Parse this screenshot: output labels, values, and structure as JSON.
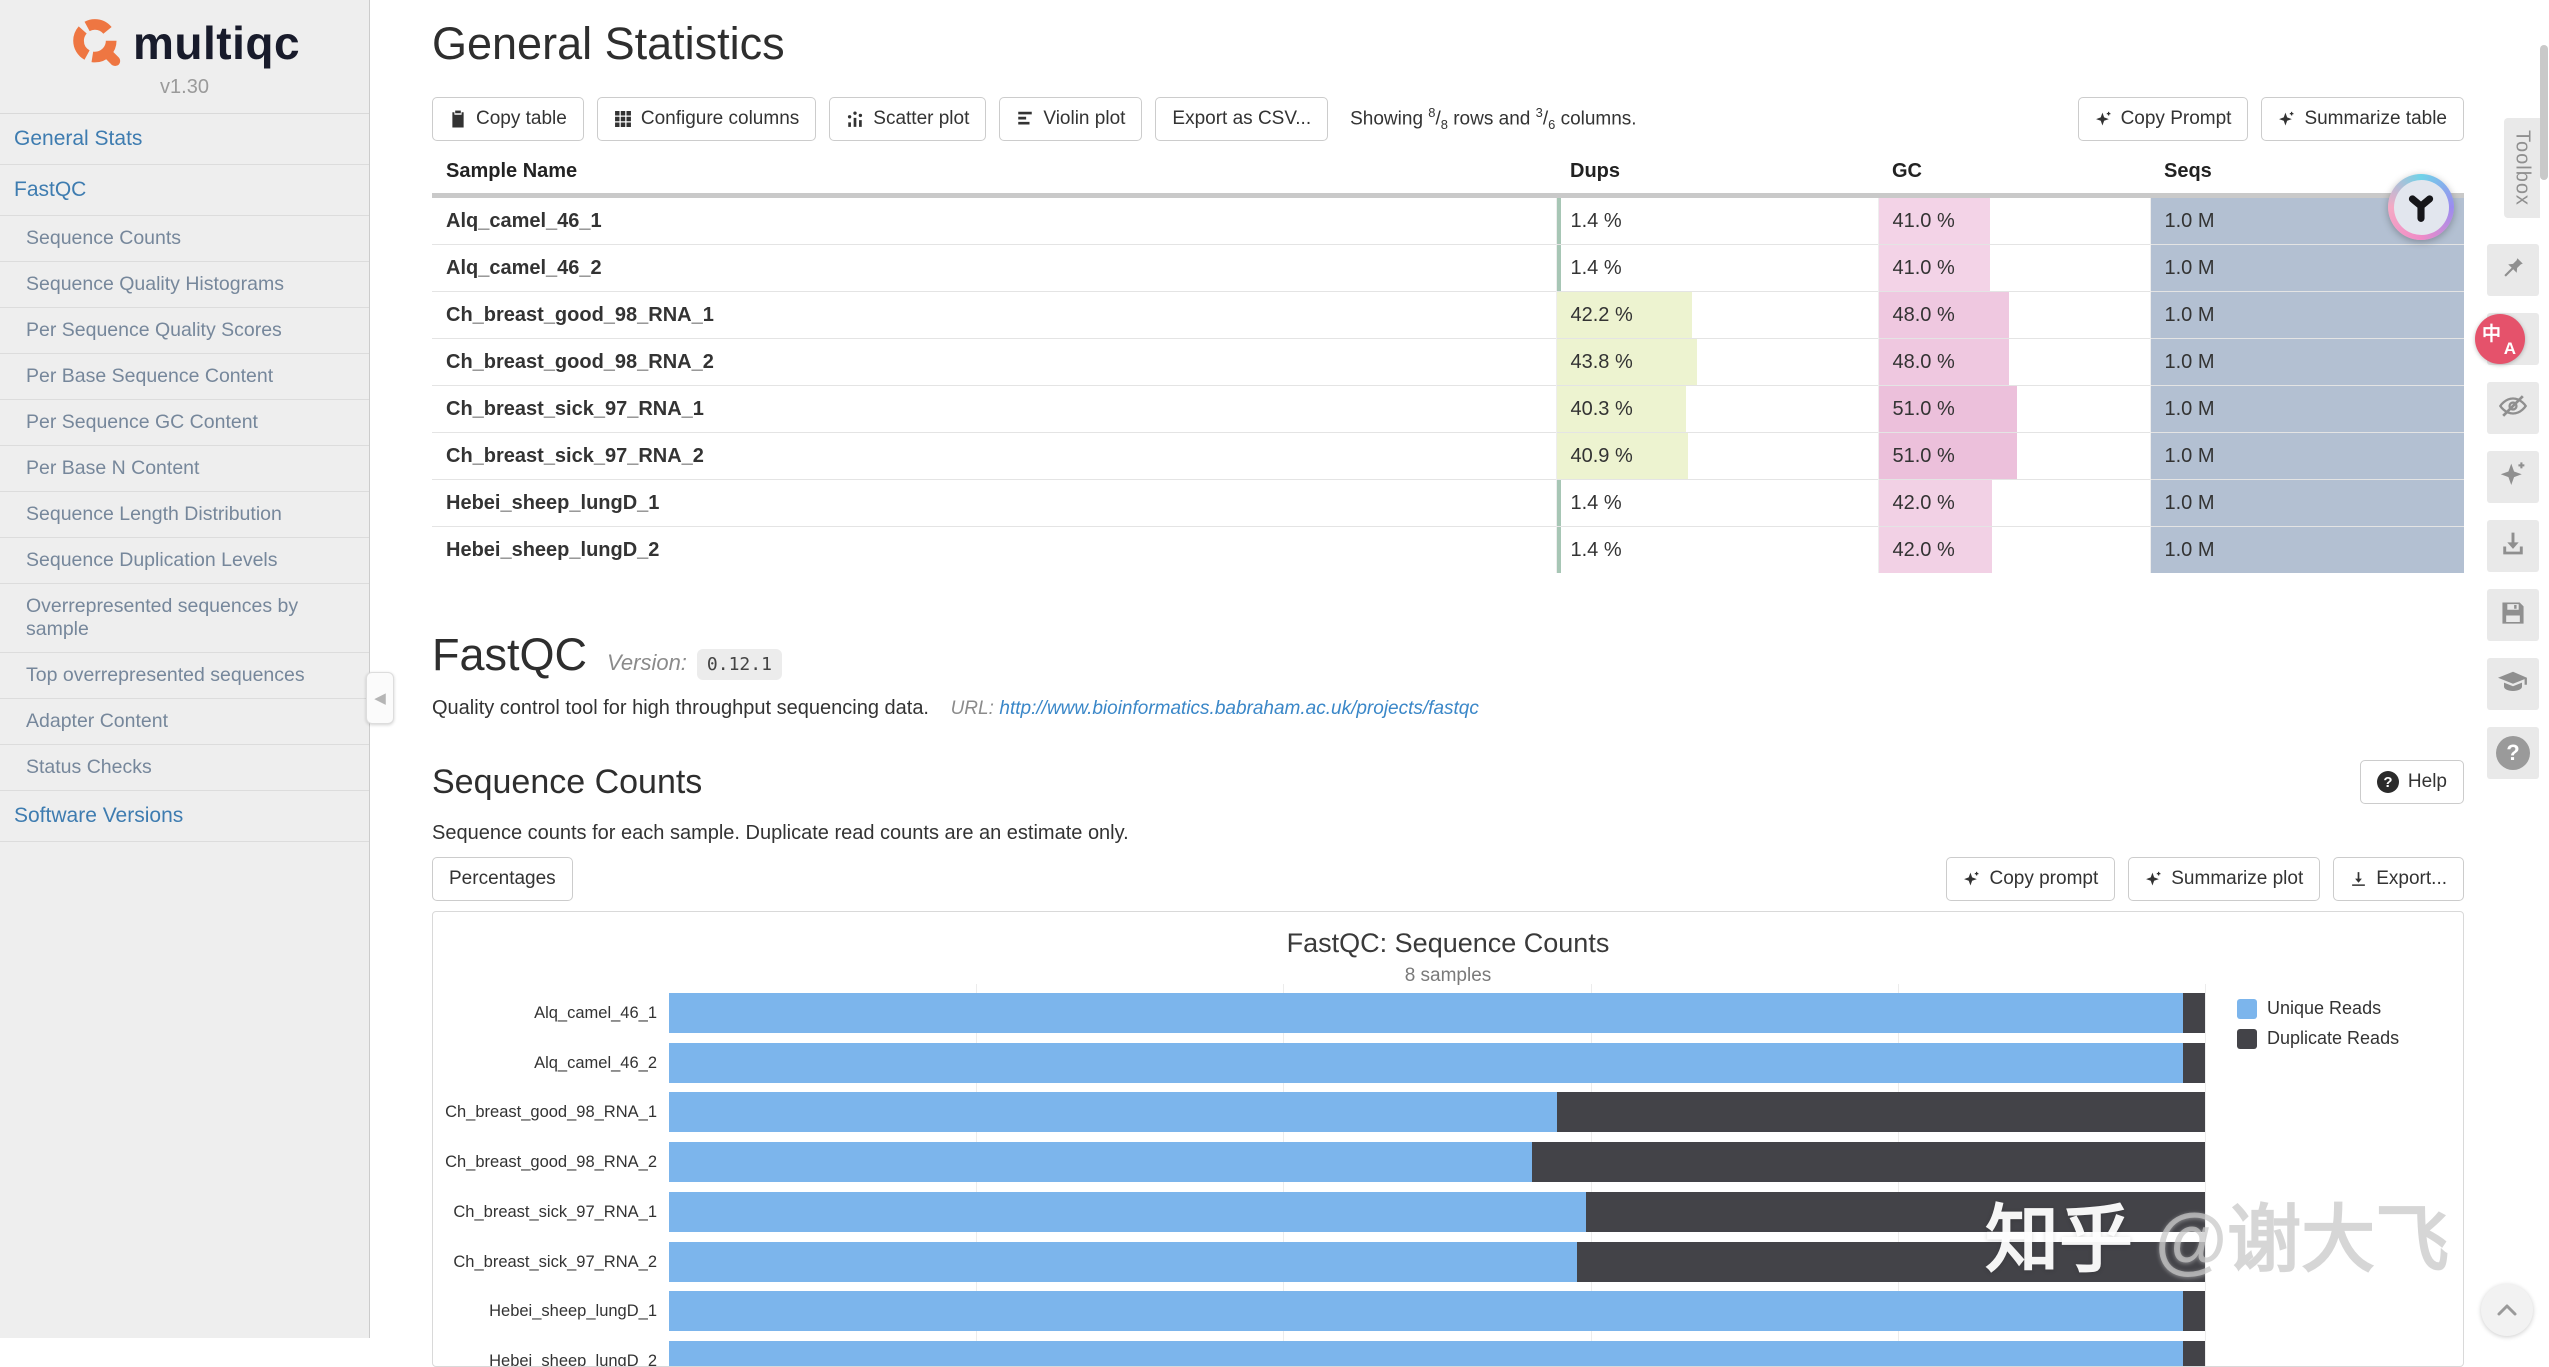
{
  "sidebar": {
    "logo_text": "multiqc",
    "version": "v1.30",
    "collapse_icon": "◀",
    "items": [
      {
        "label": "General Stats",
        "level": "top"
      },
      {
        "label": "FastQC",
        "level": "top"
      },
      {
        "label": "Sequence Counts",
        "level": "sub"
      },
      {
        "label": "Sequence Quality Histograms",
        "level": "sub"
      },
      {
        "label": "Per Sequence Quality Scores",
        "level": "sub"
      },
      {
        "label": "Per Base Sequence Content",
        "level": "sub"
      },
      {
        "label": "Per Sequence GC Content",
        "level": "sub"
      },
      {
        "label": "Per Base N Content",
        "level": "sub"
      },
      {
        "label": "Sequence Length Distribution",
        "level": "sub"
      },
      {
        "label": "Sequence Duplication Levels",
        "level": "sub"
      },
      {
        "label": "Overrepresented sequences by sample",
        "level": "sub"
      },
      {
        "label": "Top overrepresented sequences",
        "level": "sub"
      },
      {
        "label": "Adapter Content",
        "level": "sub"
      },
      {
        "label": "Status Checks",
        "level": "sub"
      },
      {
        "label": "Software Versions",
        "level": "top"
      }
    ]
  },
  "header": {
    "title": "General Statistics",
    "buttons": [
      {
        "label": "Copy table",
        "icon": "clipboard-icon"
      },
      {
        "label": "Configure columns",
        "icon": "grid-icon"
      },
      {
        "label": "Scatter plot",
        "icon": "scatter-chart-icon"
      },
      {
        "label": "Violin plot",
        "icon": "violin-bars-icon"
      },
      {
        "label": "Export as CSV...",
        "icon": null
      }
    ],
    "showing": {
      "prefix": "Showing",
      "rows_num": "8",
      "sep1": "/",
      "rows_den": "8",
      "mid": "rows and",
      "cols_num": "3",
      "sep2": "/",
      "cols_den": "6",
      "suffix": "columns."
    },
    "ai_buttons": [
      {
        "label": "Copy Prompt",
        "icon": "sparkle-icon"
      },
      {
        "label": "Summarize table",
        "icon": "sparkle-icon"
      }
    ]
  },
  "table": {
    "columns": [
      "Sample Name",
      "Dups",
      "GC",
      "Seqs"
    ],
    "rows": [
      {
        "name": "Alq_camel_46_1",
        "dups": "1.4 %",
        "dups_pct": 1.4,
        "dups_color": "#a7c6b5",
        "gc": "41.0 %",
        "gc_pct": 41,
        "gc_color": "#f3d3e7",
        "seqs": "1.0 M",
        "seqs_pct": 100,
        "seqs_color": "#b3c0d2"
      },
      {
        "name": "Alq_camel_46_2",
        "dups": "1.4 %",
        "dups_pct": 1.4,
        "dups_color": "#a7c6b5",
        "gc": "41.0 %",
        "gc_pct": 41,
        "gc_color": "#f3d3e7",
        "seqs": "1.0 M",
        "seqs_pct": 100,
        "seqs_color": "#b3c0d2"
      },
      {
        "name": "Ch_breast_good_98_RNA_1",
        "dups": "42.2 %",
        "dups_pct": 42.2,
        "dups_color": "#edf3d0",
        "gc": "48.0 %",
        "gc_pct": 48,
        "gc_color": "#efc8e0",
        "seqs": "1.0 M",
        "seqs_pct": 100,
        "seqs_color": "#b3c0d2"
      },
      {
        "name": "Ch_breast_good_98_RNA_2",
        "dups": "43.8 %",
        "dups_pct": 43.8,
        "dups_color": "#edf3d0",
        "gc": "48.0 %",
        "gc_pct": 48,
        "gc_color": "#efc8e0",
        "seqs": "1.0 M",
        "seqs_pct": 100,
        "seqs_color": "#b3c0d2"
      },
      {
        "name": "Ch_breast_sick_97_RNA_1",
        "dups": "40.3 %",
        "dups_pct": 40.3,
        "dups_color": "#edf3d0",
        "gc": "51.0 %",
        "gc_pct": 51,
        "gc_color": "#ecc0db",
        "seqs": "1.0 M",
        "seqs_pct": 100,
        "seqs_color": "#b3c0d2"
      },
      {
        "name": "Ch_breast_sick_97_RNA_2",
        "dups": "40.9 %",
        "dups_pct": 40.9,
        "dups_color": "#edf3d0",
        "gc": "51.0 %",
        "gc_pct": 51,
        "gc_color": "#ecc0db",
        "seqs": "1.0 M",
        "seqs_pct": 100,
        "seqs_color": "#b3c0d2"
      },
      {
        "name": "Hebei_sheep_lungD_1",
        "dups": "1.4 %",
        "dups_pct": 1.4,
        "dups_color": "#a7c6b5",
        "gc": "42.0 %",
        "gc_pct": 42,
        "gc_color": "#f2d1e5",
        "seqs": "1.0 M",
        "seqs_pct": 100,
        "seqs_color": "#b3c0d2"
      },
      {
        "name": "Hebei_sheep_lungD_2",
        "dups": "1.4 %",
        "dups_pct": 1.4,
        "dups_color": "#a7c6b5",
        "gc": "42.0 %",
        "gc_pct": 42,
        "gc_color": "#f2d1e5",
        "seqs": "1.0 M",
        "seqs_pct": 100,
        "seqs_color": "#b3c0d2"
      }
    ]
  },
  "fastqc": {
    "title": "FastQC",
    "version_label": "Version:",
    "version": "0.12.1",
    "description": "Quality control tool for high throughput sequencing data.",
    "url_label": "URL:",
    "url": "http://www.bioinformatics.babraham.ac.uk/projects/fastqc"
  },
  "sequence_counts": {
    "title": "Sequence Counts",
    "help_label": "Help",
    "description": "Sequence counts for each sample. Duplicate read counts are an estimate only.",
    "percentages_label": "Percentages",
    "plot_buttons": [
      "Copy prompt",
      "Summarize plot",
      "Export..."
    ]
  },
  "chart_data": {
    "type": "bar",
    "orientation": "horizontal",
    "stacked": true,
    "title": "FastQC: Sequence Counts",
    "subtitle": "8 samples",
    "categories": [
      "Alq_camel_46_1",
      "Alq_camel_46_2",
      "Ch_breast_good_98_RNA_1",
      "Ch_breast_good_98_RNA_2",
      "Ch_breast_sick_97_RNA_1",
      "Ch_breast_sick_97_RNA_2",
      "Hebei_sheep_lungD_1",
      "Hebei_sheep_lungD_2"
    ],
    "series": [
      {
        "name": "Unique Reads",
        "color": "#7cb5ec",
        "values": [
          986000,
          986000,
          578000,
          562000,
          597000,
          591000,
          986000,
          986000
        ]
      },
      {
        "name": "Duplicate Reads",
        "color": "#434348",
        "values": [
          14000,
          14000,
          422000,
          438000,
          403000,
          409000,
          14000,
          14000
        ]
      }
    ],
    "xlim": [
      0,
      1000000
    ],
    "grid": true,
    "legend_position": "right"
  },
  "toolbox": {
    "tab_label": "Toolbox",
    "translate_zh": "中",
    "translate_latin": "A",
    "icons": [
      "pin-icon",
      "translate-icon",
      "eye-slash-icon",
      "sparkles-icon",
      "download-icon",
      "save-icon",
      "graduation-cap-icon",
      "question-icon"
    ]
  },
  "watermark": {
    "part1": "知乎",
    "part2": "@谢大飞"
  },
  "misc": {
    "question_glyph": "?"
  }
}
